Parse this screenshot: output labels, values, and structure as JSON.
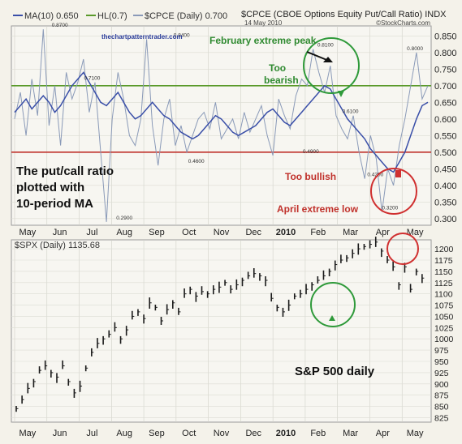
{
  "header": {
    "legend_ma": "MA(10) 0.650",
    "legend_hl": "HL(0.7)",
    "legend_cpce": "$CPCE (Daily) 0.700",
    "title": "$CPCE (CBOE Options Equity Put/Call Ratio) INDX",
    "date": "14 May 2010",
    "credit": "©StockCharts.com",
    "website": "thechartpatterntrader.com",
    "spx_legend": "$SPX (Daily) 1135.68"
  },
  "annotations": {
    "feb_peak": "February extreme peak",
    "too_bearish_1": "Too",
    "too_bearish_2": "bearish",
    "too_bullish": "Too bullish",
    "april_low": "April extreme low",
    "pc_note_1": "The put/call ratio",
    "pc_note_2": "plotted with",
    "pc_note_3": "10-period MA",
    "spx_note": "S&P 500 daily"
  },
  "colors": {
    "ma_line": "#3a4fa8",
    "cpce_line": "#8a9ab8",
    "upper_hline": "#5a9a2a",
    "lower_hline": "#c0302a",
    "green_circle": "#2f9a3a",
    "red_circle": "#d03030",
    "price_bars": "#1a1a1a"
  },
  "chart_data": [
    {
      "type": "line",
      "title": "$CPCE (CBOE Options Equity Put/Call Ratio) INDX",
      "x_labels": [
        "May",
        "Jun",
        "Jul",
        "Aug",
        "Sep",
        "Oct",
        "Nov",
        "Dec",
        "2010",
        "Feb",
        "Mar",
        "Apr",
        "May"
      ],
      "yticks": [
        "0.850",
        "0.800",
        "0.750",
        "0.700",
        "0.650",
        "0.600",
        "0.550",
        "0.500",
        "0.450",
        "0.400",
        "0.350",
        "0.300"
      ],
      "ylim": [
        0.28,
        0.88
      ],
      "hlines": [
        0.7,
        0.5
      ],
      "point_labels": [
        {
          "x": "Jun",
          "y": 0.87,
          "text": "0.8700"
        },
        {
          "x": "Jul",
          "y": 0.71,
          "text": "0.7100"
        },
        {
          "x": "Aug",
          "y": 0.29,
          "text": "0.2900"
        },
        {
          "x": "Oct",
          "y": 0.84,
          "text": "0.8400"
        },
        {
          "x": "Oct",
          "y": 0.46,
          "text": "0.4600"
        },
        {
          "x": "Feb",
          "y": 0.49,
          "text": "0.4900"
        },
        {
          "x": "Feb",
          "y": 0.81,
          "text": "0.8100"
        },
        {
          "x": "Mar",
          "y": 0.61,
          "text": "0.6100"
        },
        {
          "x": "Apr",
          "y": 0.42,
          "text": "0.4200"
        },
        {
          "x": "Apr",
          "y": 0.32,
          "text": "0.3200"
        },
        {
          "x": "May",
          "y": 0.8,
          "text": "0.8000"
        }
      ],
      "series": [
        {
          "name": "MA(10)",
          "values": [
            0.62,
            0.64,
            0.66,
            0.63,
            0.65,
            0.67,
            0.65,
            0.62,
            0.64,
            0.67,
            0.7,
            0.72,
            0.74,
            0.71,
            0.68,
            0.65,
            0.64,
            0.66,
            0.68,
            0.65,
            0.62,
            0.6,
            0.61,
            0.63,
            0.65,
            0.63,
            0.61,
            0.6,
            0.58,
            0.56,
            0.55,
            0.54,
            0.55,
            0.57,
            0.59,
            0.61,
            0.6,
            0.58,
            0.56,
            0.55,
            0.56,
            0.57,
            0.58,
            0.6,
            0.62,
            0.63,
            0.61,
            0.59,
            0.58,
            0.6,
            0.62,
            0.64,
            0.66,
            0.68,
            0.7,
            0.69,
            0.66,
            0.63,
            0.6,
            0.58,
            0.56,
            0.54,
            0.51,
            0.49,
            0.47,
            0.45,
            0.44,
            0.47,
            0.5,
            0.55,
            0.6,
            0.64,
            0.65
          ]
        },
        {
          "name": "$CPCE (Daily)",
          "values": [
            0.6,
            0.68,
            0.55,
            0.72,
            0.61,
            0.87,
            0.58,
            0.7,
            0.52,
            0.74,
            0.66,
            0.71,
            0.78,
            0.62,
            0.71,
            0.5,
            0.29,
            0.6,
            0.74,
            0.66,
            0.55,
            0.52,
            0.6,
            0.84,
            0.58,
            0.46,
            0.6,
            0.66,
            0.52,
            0.58,
            0.5,
            0.55,
            0.6,
            0.62,
            0.57,
            0.65,
            0.54,
            0.57,
            0.6,
            0.54,
            0.62,
            0.56,
            0.6,
            0.64,
            0.55,
            0.49,
            0.66,
            0.61,
            0.57,
            0.67,
            0.72,
            0.7,
            0.81,
            0.74,
            0.68,
            0.76,
            0.61,
            0.57,
            0.54,
            0.61,
            0.5,
            0.42,
            0.55,
            0.48,
            0.32,
            0.45,
            0.4,
            0.52,
            0.6,
            0.7,
            0.8,
            0.66,
            0.7
          ]
        }
      ]
    },
    {
      "type": "bar",
      "title": "$SPX (Daily) 1135.68",
      "x_labels": [
        "May",
        "Jun",
        "Jul",
        "Aug",
        "Sep",
        "Oct",
        "Nov",
        "Dec",
        "2010",
        "Feb",
        "Mar",
        "Apr",
        "May"
      ],
      "yticks": [
        "1200",
        "1175",
        "1150",
        "1125",
        "1100",
        "1075",
        "1050",
        "1025",
        "1000",
        "975",
        "950",
        "925",
        "900",
        "875",
        "850",
        "825"
      ],
      "ylim": [
        815,
        1220
      ],
      "series": [
        {
          "name": "$SPX (Daily)",
          "values": [
            845,
            865,
            890,
            905,
            930,
            940,
            925,
            915,
            940,
            905,
            880,
            895,
            935,
            970,
            990,
            1000,
            1010,
            1025,
            1000,
            1020,
            1050,
            1060,
            1045,
            1080,
            1070,
            1040,
            1065,
            1080,
            1060,
            1100,
            1110,
            1095,
            1105,
            1100,
            1110,
            1115,
            1125,
            1110,
            1120,
            1130,
            1140,
            1145,
            1140,
            1130,
            1090,
            1070,
            1060,
            1075,
            1095,
            1100,
            1110,
            1120,
            1130,
            1140,
            1150,
            1165,
            1175,
            1180,
            1190,
            1200,
            1205,
            1210,
            1215,
            1195,
            1175,
            1160,
            1120,
            1160,
            1110,
            1150,
            1135
          ]
        }
      ]
    }
  ]
}
